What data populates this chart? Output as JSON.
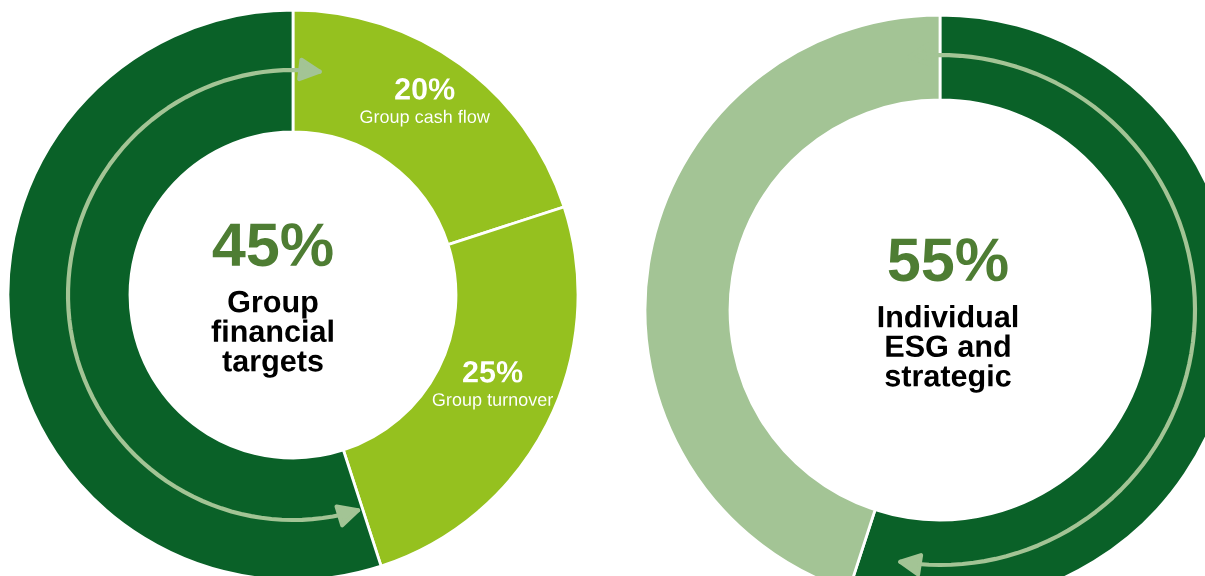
{
  "chart_data": [
    {
      "type": "donut",
      "categories": [
        "Group cash flow",
        "Group turnover",
        null
      ],
      "values": [
        20,
        25,
        55
      ],
      "colors": [
        "#95c11f",
        "#95c11f",
        "#0a6128"
      ],
      "value_labels": [
        "20%",
        "25%",
        null
      ],
      "annotations": [
        "45%",
        "Group\nfinancial\ntargets"
      ]
    },
    {
      "type": "donut",
      "categories": [
        null,
        null
      ],
      "values": [
        55,
        45
      ],
      "colors": [
        "#0a6128",
        "#a3c495"
      ],
      "annotations": [
        "55%",
        "Individual\nESG and\nstrategic"
      ]
    }
  ]
}
